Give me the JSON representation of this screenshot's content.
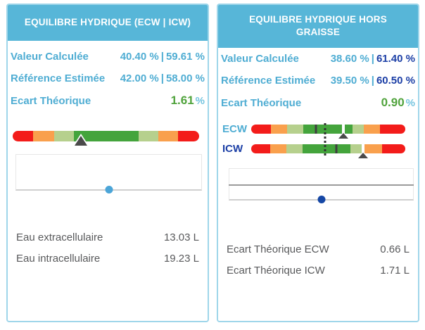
{
  "colors": {
    "header_bg": "#57B6D8",
    "panel_border": "#9FD6EA",
    "light_blue": "#4FADD3",
    "navy": "#1C3FA6",
    "green": "#50A33C",
    "pct_light_blue": "#74C4DF",
    "gray_text": "#58595B",
    "bar_red": "#F31C1A",
    "bar_orange": "#F9A04D",
    "bar_lightgreen": "#B6D08D",
    "bar_green": "#44A43C",
    "marker_dark": "#4A4A4A",
    "dot_left": "#4BA5D8",
    "dot_right": "#1547A5",
    "slider_border": "#E7E7E7",
    "slider_divider": "#9B9B9B",
    "slider_track": "#CFCFCF"
  },
  "panels": [
    {
      "title": "EQUILIBRE HYDRIQUE (ECW | ICW)",
      "stats": [
        {
          "label": "Valeur Calculée",
          "v1": "40.40 %",
          "sep": "|",
          "v2": "59.61 %"
        },
        {
          "label": "Référence Estimée",
          "v1": "42.00 %",
          "sep": "|",
          "v2": "58.00 %"
        },
        {
          "label": "Ecart Théorique",
          "value": "1.61",
          "unit": "%"
        }
      ],
      "gauges": [
        {
          "label": null,
          "size": "big",
          "segments": [
            [
              "red",
              11
            ],
            [
              "orange",
              11.3
            ],
            [
              "lightgreen",
              10.6
            ],
            [
              "green",
              34.6
            ],
            [
              "lightgreen",
              10.6
            ],
            [
              "orange",
              10.6
            ],
            [
              "red",
              11.3
            ]
          ],
          "tick": null,
          "marker": 36.6
        }
      ],
      "dotted": null,
      "slider": {
        "style": "single",
        "dot_percent": 50,
        "dot_color": "dot_left"
      },
      "details": [
        {
          "label": "Eau extracellulaire",
          "value": "13.03 L"
        },
        {
          "label": "Eau intracellulaire",
          "value": "19.23 L"
        }
      ]
    },
    {
      "title": "EQUILIBRE HYDRIQUE HORS GRAISSE",
      "stats": [
        {
          "label": "Valeur Calculée",
          "v1": "38.60 %",
          "sep": "|",
          "v2": "61.40 %"
        },
        {
          "label": "Référence Estimée",
          "v1": "39.50 %",
          "sep": "|",
          "v2": "60.50 %"
        },
        {
          "label": "Ecart Théorique",
          "value": "0.90",
          "unit": "%"
        }
      ],
      "gauges": [
        {
          "label": "ECW",
          "label_color": "light_blue",
          "size": "small",
          "segments": [
            [
              "red",
              12.7
            ],
            [
              "orange",
              10.4
            ],
            [
              "lightgreen",
              10.8
            ],
            [
              "green",
              31.7
            ],
            [
              "lightgreen",
              7.3
            ],
            [
              "orange",
              10.9
            ],
            [
              "red",
              16.2
            ]
          ],
          "tick": 42.1,
          "marker": 59.7
        },
        {
          "label": "ICW",
          "label_color": "navy",
          "size": "small",
          "segments": [
            [
              "red",
              12.4
            ],
            [
              "orange",
              10.6
            ],
            [
              "lightgreen",
              10.2
            ],
            [
              "green",
              31.3
            ],
            [
              "lightgreen",
              9.2
            ],
            [
              "orange",
              11.1
            ],
            [
              "red",
              15.2
            ]
          ],
          "tick": 55.3,
          "marker": 72.4
        }
      ],
      "dotted": 48,
      "slider": {
        "style": "double",
        "dot_percent": 50,
        "dot_color": "dot_right"
      },
      "details": [
        {
          "label": "Ecart Théorique ECW",
          "value": "0.66 L"
        },
        {
          "label": "Ecart Théorique ICW",
          "value": "1.71 L"
        }
      ]
    }
  ]
}
